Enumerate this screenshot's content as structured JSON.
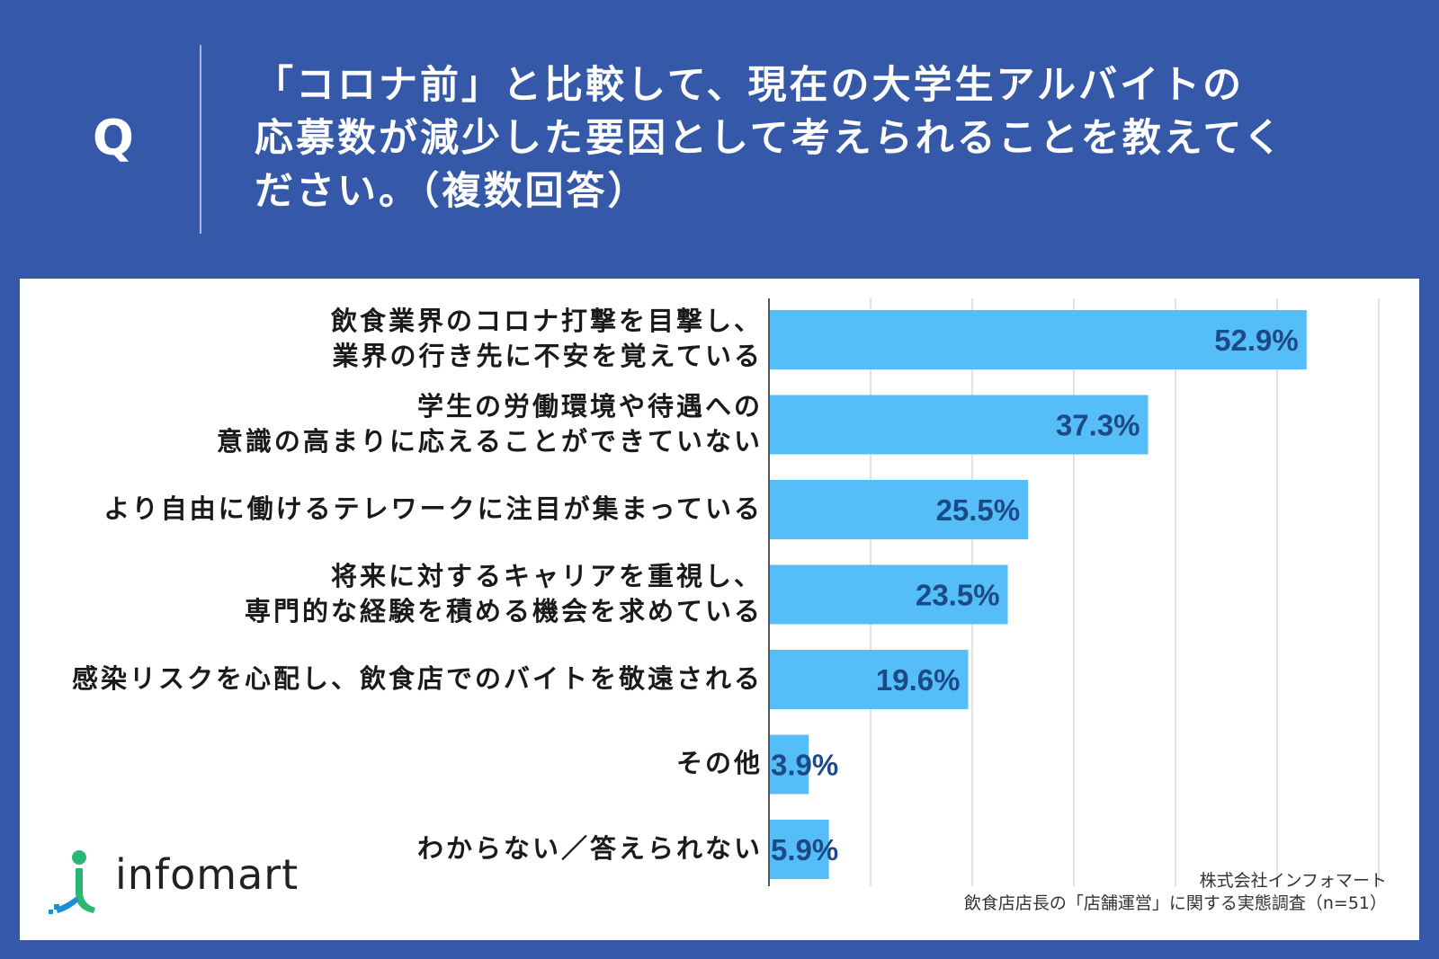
{
  "header": {
    "q_mark": "Q",
    "question_lines": [
      "「コロナ前」と比較して、現在の大学生アルバイトの",
      "応募数が減少した要因として考えられることを教えてく",
      "ださい。（複数回答）"
    ]
  },
  "chart_data": {
    "type": "bar",
    "orientation": "horizontal",
    "title": "「コロナ前」と比較して、現在の大学生アルバイトの応募数が減少した要因として考えられることを教えてください。（複数回答）",
    "unit": "%",
    "xlim": [
      0,
      60
    ],
    "grid": true,
    "categories": [
      [
        "飲食業界のコロナ打撃を目撃し、",
        "業界の行き先に不安を覚えている"
      ],
      [
        "学生の労働環境や待遇への",
        "意識の高まりに応えることができていない"
      ],
      [
        "より自由に働けるテレワークに注目が集まっている"
      ],
      [
        "将来に対するキャリアを重視し、",
        "専門的な経験を積める機会を求めている"
      ],
      [
        "感染リスクを心配し、飲食店でのバイトを敬遠される"
      ],
      [
        "その他"
      ],
      [
        "わからない／答えられない"
      ]
    ],
    "values": [
      52.9,
      37.3,
      25.5,
      23.5,
      19.6,
      3.9,
      5.9
    ],
    "value_labels": [
      "52.9%",
      "37.3%",
      "25.5%",
      "23.5%",
      "19.6%",
      "3.9%",
      "5.9%"
    ]
  },
  "colors": {
    "background": "#3559a8",
    "bar": "#55bdf7",
    "value_label": "#1c4a86",
    "grid": "#d9d9d9",
    "axis": "#555555"
  },
  "source": {
    "line1": "株式会社インフォマート",
    "line2": "飲食店店長の「店舗運営」に関する実態調査（n=51）"
  },
  "logo": {
    "text": "infomart"
  }
}
